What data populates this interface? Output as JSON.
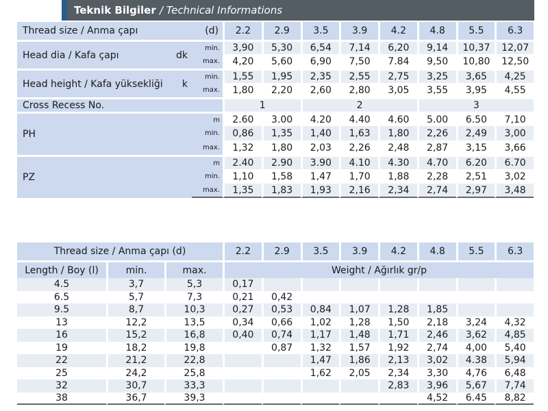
{
  "banner": {
    "title_tr": "Teknik Bilgiler",
    "title_en": "/ Technical Informations"
  },
  "t1": {
    "thread_label": "Thread size / Anma çapı",
    "thread_sym": "(d)",
    "sizes": [
      "2.2",
      "2.9",
      "3.5",
      "3.9",
      "4.2",
      "4.8",
      "5.5",
      "6.3"
    ],
    "head_dia": {
      "label": "Head dia / Kafa çapı",
      "sym": "dk",
      "min_label": "min.",
      "max_label": "max.",
      "min": [
        "3,90",
        "5,30",
        "6,54",
        "7,14",
        "6,20",
        "9,14",
        "10,37",
        "12,07"
      ],
      "max": [
        "4,20",
        "5,60",
        "6,90",
        "7,50",
        "7.84",
        "9,50",
        "10,80",
        "12,50"
      ]
    },
    "head_height": {
      "label": "Head height / Kafa yüksekliği",
      "sym": "k",
      "min_label": "min.",
      "max_label": "max.",
      "min": [
        "1,55",
        "1,95",
        "2,35",
        "2,55",
        "2,75",
        "3,25",
        "3,65",
        "4,25"
      ],
      "max": [
        "1,80",
        "2,20",
        "2,60",
        "2,80",
        "3,05",
        "3,55",
        "3,95",
        "4,55"
      ]
    },
    "cross_recess": {
      "label": "Cross Recess No.",
      "groups": [
        "1",
        "2",
        "3"
      ]
    },
    "ph": {
      "label": "PH",
      "m_label": "m",
      "min_label": "min.",
      "max_label": "max.",
      "m": [
        "2.60",
        "3.00",
        "4.20",
        "4.40",
        "4.60",
        "5.00",
        "6.50",
        "7,10"
      ],
      "min": [
        "0,86",
        "1,35",
        "1,40",
        "1,63",
        "1,80",
        "2,26",
        "2,49",
        "3,00"
      ],
      "max": [
        "1,32",
        "1,80",
        "2,03",
        "2,26",
        "2,48",
        "2,87",
        "3,15",
        "3,66"
      ]
    },
    "pz": {
      "label": "PZ",
      "m_label": "m",
      "min_label": "min.",
      "max_label": "max.",
      "m": [
        "2.40",
        "2.90",
        "3.90",
        "4.10",
        "4.30",
        "4.70",
        "6.20",
        "6.70"
      ],
      "min": [
        "1,10",
        "1,58",
        "1,47",
        "1,70",
        "1,88",
        "2,28",
        "2,51",
        "3,02"
      ],
      "max": [
        "1,35",
        "1,83",
        "1,93",
        "2,16",
        "2,34",
        "2,74",
        "2,97",
        "3,48"
      ]
    }
  },
  "t2": {
    "thread_label": "Thread size / Anma çapı (d)",
    "sizes": [
      "2.2",
      "2.9",
      "3.5",
      "3.9",
      "4.2",
      "4.8",
      "5.5",
      "6.3"
    ],
    "length_label": "Length / Boy (l)",
    "min_label": "min.",
    "max_label": "max.",
    "weight_label": "Weight / Ağırlık gr/p",
    "rows": [
      {
        "len": "4.5",
        "min": "3,7",
        "max": "5,3",
        "w": [
          "0,17",
          "",
          "",
          "",
          "",
          "",
          "",
          ""
        ]
      },
      {
        "len": "6.5",
        "min": "5,7",
        "max": "7,3",
        "w": [
          "0,21",
          "0,42",
          "",
          "",
          "",
          "",
          "",
          ""
        ]
      },
      {
        "len": "9.5",
        "min": "8,7",
        "max": "10,3",
        "w": [
          "0,27",
          "0,53",
          "0,84",
          "1,07",
          "1,28",
          "1,85",
          "",
          ""
        ]
      },
      {
        "len": "13",
        "min": "12,2",
        "max": "13,5",
        "w": [
          "0,34",
          "0,66",
          "1,02",
          "1,28",
          "1,50",
          "2,18",
          "3,24",
          "4,32"
        ]
      },
      {
        "len": "16",
        "min": "15,2",
        "max": "16,8",
        "w": [
          "0,40",
          "0,74",
          "1,17",
          "1,48",
          "1,71",
          "2,46",
          "3,62",
          "4,85"
        ]
      },
      {
        "len": "19",
        "min": "18,2",
        "max": "19,8",
        "w": [
          "",
          "0,87",
          "1,32",
          "1,57",
          "1,92",
          "2,74",
          "4,00",
          "5,40"
        ]
      },
      {
        "len": "22",
        "min": "21,2",
        "max": "22,8",
        "w": [
          "",
          "",
          "1,47",
          "1,86",
          "2,13",
          "3,02",
          "4.38",
          "5,94"
        ]
      },
      {
        "len": "25",
        "min": "24,2",
        "max": "25,8",
        "w": [
          "",
          "",
          "1,62",
          "2,05",
          "2,34",
          "3,30",
          "4,76",
          "6,48"
        ]
      },
      {
        "len": "32",
        "min": "30,7",
        "max": "33,3",
        "w": [
          "",
          "",
          "",
          "",
          "2,83",
          "3,96",
          "5,67",
          "7,74"
        ]
      },
      {
        "len": "38",
        "min": "36,7",
        "max": "39,3",
        "w": [
          "",
          "",
          "",
          "",
          "",
          "4,52",
          "6.45",
          "8,82"
        ]
      }
    ]
  }
}
